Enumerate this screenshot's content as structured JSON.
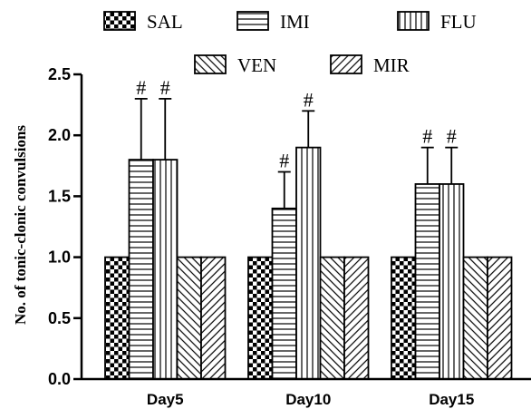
{
  "chart_data": {
    "type": "bar",
    "categories": [
      "Day5",
      "Day10",
      "Day15"
    ],
    "ylabel": "No. of tonic-clonic convulsions",
    "xlabel": "",
    "ylim": [
      0,
      2.5
    ],
    "yticks": [
      "0.0",
      "0.5",
      "1.0",
      "1.5",
      "2.0",
      "2.5"
    ],
    "legend_position": "top",
    "series": [
      {
        "name": "SAL",
        "pattern": "checker",
        "values": [
          1.0,
          1.0,
          1.0
        ],
        "error": [
          0,
          0,
          0
        ],
        "significance": [
          "",
          "",
          ""
        ]
      },
      {
        "name": "IMI",
        "pattern": "horizontal-lines",
        "values": [
          1.8,
          1.4,
          1.6
        ],
        "error": [
          0.5,
          0.3,
          0.3
        ],
        "significance": [
          "#",
          "#",
          "#"
        ]
      },
      {
        "name": "FLU",
        "pattern": "vertical-lines",
        "values": [
          1.8,
          1.9,
          1.6
        ],
        "error": [
          0.5,
          0.3,
          0.3
        ],
        "significance": [
          "#",
          "#",
          "#"
        ]
      },
      {
        "name": "VEN",
        "pattern": "diagonal-up",
        "values": [
          1.0,
          1.0,
          1.0
        ],
        "error": [
          0,
          0,
          0
        ],
        "significance": [
          "",
          "",
          ""
        ]
      },
      {
        "name": "MIR",
        "pattern": "diagonal-down",
        "values": [
          1.0,
          1.0,
          1.0
        ],
        "error": [
          0,
          0,
          0
        ],
        "significance": [
          "",
          "",
          ""
        ]
      }
    ]
  }
}
